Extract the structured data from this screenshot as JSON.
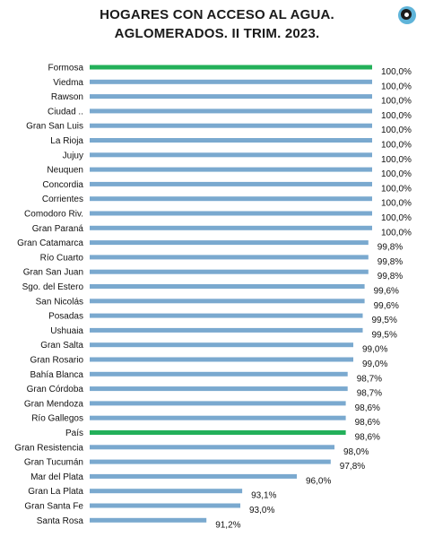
{
  "header": {
    "title_line1": "HOGARES CON ACCESO AL AGUA.",
    "title_line2": "AGLOMERADOS. II TRIM. 2023."
  },
  "colors": {
    "bar": "#7aa9cf",
    "highlight": "#23b05a"
  },
  "chart_data": {
    "type": "bar",
    "orientation": "horizontal",
    "title": "HOGARES CON ACCESO AL AGUA. AGLOMERADOS. II TRIM. 2023.",
    "xlim": [
      85,
      100
    ],
    "grid": false,
    "legend": "none",
    "categories": [
      "Formosa",
      "Viedma",
      "Rawson",
      "Ciudad ..",
      "Gran San Luis",
      "La Rioja",
      "Jujuy",
      "Neuquen",
      "Concordia",
      "Corrientes",
      "Comodoro Riv.",
      "Gran Paraná",
      "Gran Catamarca",
      "Río Cuarto",
      "Gran San Juan",
      "Sgo. del Estero",
      "San Nicolás",
      "Posadas",
      "Ushuaia",
      "Gran Salta",
      "Gran Rosario",
      "Bahía Blanca",
      "Gran Córdoba",
      "Gran Mendoza",
      "Río Gallegos",
      "País",
      "Gran Resistencia",
      "Gran Tucumán",
      "Mar del Plata",
      "Gran La Plata",
      "Gran Santa Fe",
      "Santa Rosa"
    ],
    "values": [
      100.0,
      100.0,
      100.0,
      100.0,
      100.0,
      100.0,
      100.0,
      100.0,
      100.0,
      100.0,
      100.0,
      100.0,
      99.8,
      99.8,
      99.8,
      99.6,
      99.6,
      99.5,
      99.5,
      99.0,
      99.0,
      98.7,
      98.7,
      98.6,
      98.6,
      98.6,
      98.0,
      97.8,
      96.0,
      93.1,
      93.0,
      91.2
    ],
    "value_labels": [
      "100,0%",
      "100,0%",
      "100,0%",
      "100,0%",
      "100,0%",
      "100,0%",
      "100,0%",
      "100,0%",
      "100,0%",
      "100,0%",
      "100,0%",
      "100,0%",
      "99,8%",
      "99,8%",
      "99,8%",
      "99,6%",
      "99,6%",
      "99,5%",
      "99,5%",
      "99,0%",
      "99,0%",
      "98,7%",
      "98,7%",
      "98,6%",
      "98,6%",
      "98,6%",
      "98,0%",
      "97,8%",
      "96,0%",
      "93,1%",
      "93,0%",
      "91,2%"
    ],
    "highlighted": [
      "Formosa",
      "País"
    ]
  }
}
